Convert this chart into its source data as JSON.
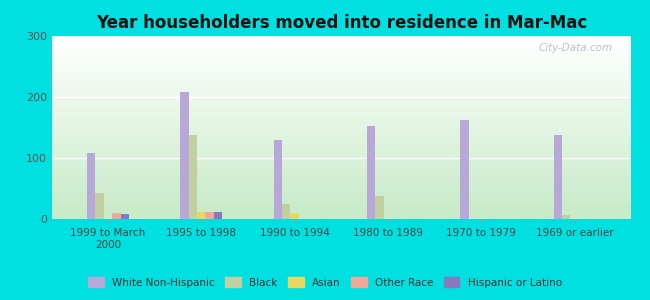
{
  "title": "Year householders moved into residence in Mar-Mac",
  "categories": [
    "1999 to March\n2000",
    "1995 to 1998",
    "1990 to 1994",
    "1980 to 1989",
    "1970 to 1979",
    "1969 or earlier"
  ],
  "series": {
    "White Non-Hispanic": [
      108,
      208,
      130,
      153,
      162,
      137
    ],
    "Black": [
      42,
      138,
      25,
      38,
      0,
      6
    ],
    "Asian": [
      0,
      12,
      10,
      0,
      0,
      0
    ],
    "Other Race": [
      10,
      12,
      0,
      0,
      0,
      0
    ],
    "Hispanic or Latino": [
      8,
      12,
      0,
      0,
      0,
      0
    ]
  },
  "colors": {
    "White Non-Hispanic": "#b8a8d8",
    "Black": "#c0d0a0",
    "Asian": "#e8d860",
    "Other Race": "#f0a898",
    "Hispanic or Latino": "#8878c0"
  },
  "ylim": [
    0,
    300
  ],
  "yticks": [
    0,
    100,
    200,
    300
  ],
  "outer_bg": "#00e0e0",
  "bar_width": 0.09,
  "watermark": "City-Data.com"
}
